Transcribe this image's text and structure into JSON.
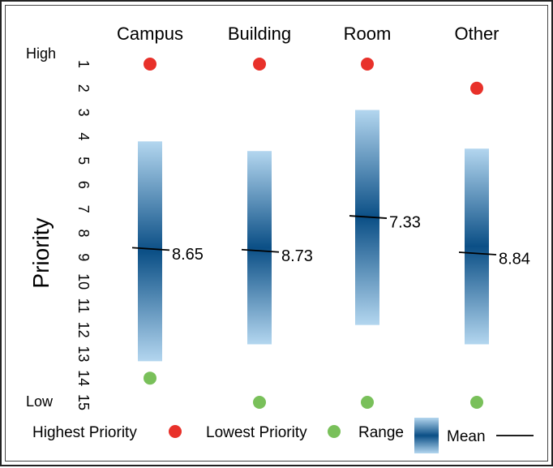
{
  "chart_data": {
    "type": "range",
    "categories": [
      "Campus",
      "Building",
      "Room",
      "Other"
    ],
    "ylabel": "Priority",
    "y_top_label": "High",
    "y_bottom_label": "Low",
    "y_ticks": [
      "1",
      "2",
      "3",
      "4",
      "5",
      "6",
      "7",
      "8",
      "9",
      "10",
      "11",
      "12",
      "13",
      "14",
      "15"
    ],
    "ylim": [
      1,
      15
    ],
    "y_reversed": true,
    "series": [
      {
        "category": "Campus",
        "highest": 1,
        "lowest": 14,
        "range_low": 4.2,
        "range_high": 13.3,
        "mean": 8.65,
        "mean_label": "8.65"
      },
      {
        "category": "Building",
        "highest": 1,
        "lowest": 15,
        "range_low": 4.6,
        "range_high": 12.6,
        "mean": 8.73,
        "mean_label": "8.73"
      },
      {
        "category": "Room",
        "highest": 1,
        "lowest": 15,
        "range_low": 2.9,
        "range_high": 11.8,
        "mean": 7.33,
        "mean_label": "7.33"
      },
      {
        "category": "Other",
        "highest": 2,
        "lowest": 15,
        "range_low": 4.5,
        "range_high": 12.6,
        "mean": 8.84,
        "mean_label": "8.84"
      }
    ],
    "legend": [
      {
        "label": "Highest Priority",
        "symbol": "red-dot-icon"
      },
      {
        "label": "Lowest Priority",
        "symbol": "green-dot-icon"
      },
      {
        "label": "Range",
        "symbol": "gradient-bar-icon"
      },
      {
        "label": "Mean",
        "symbol": "line-icon"
      }
    ],
    "colors": {
      "highest": "#e8312a",
      "lowest": "#79c05a",
      "range_edge": "#b3d6ef",
      "range_center": "#0b4f86",
      "mean": "#000000"
    },
    "grid": false,
    "legend_position": "bottom"
  }
}
